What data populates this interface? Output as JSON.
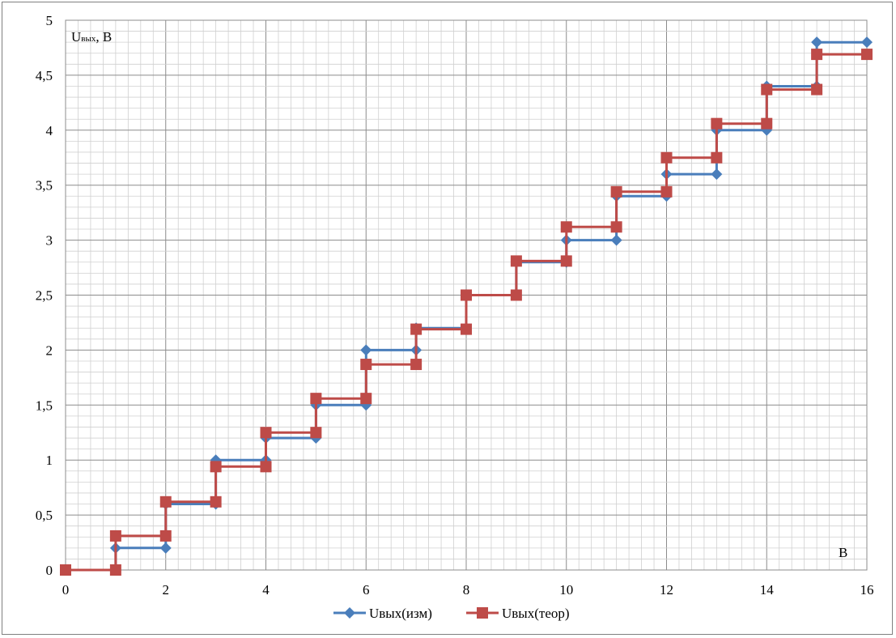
{
  "chart_data": {
    "type": "line",
    "title": "",
    "ylabel_main": "U",
    "ylabel_sub": "вых",
    "ylabel_unit": ", B",
    "xlabel": "B",
    "xlim": [
      0,
      16
    ],
    "ylim": [
      0,
      5
    ],
    "x_ticks": [
      "0",
      "2",
      "4",
      "6",
      "8",
      "10",
      "12",
      "14",
      "16"
    ],
    "y_ticks": [
      "0",
      "0,5",
      "1",
      "1,5",
      "2",
      "2,5",
      "3",
      "3,5",
      "4",
      "4,5",
      "5"
    ],
    "grid": true,
    "legend_position": "bottom",
    "series": [
      {
        "name": "Uвых(изм)",
        "color": "#4a7ebb",
        "marker": "diamond",
        "step_values": [
          0,
          0.2,
          0.6,
          1.0,
          1.2,
          1.5,
          2.0,
          2.2,
          2.5,
          2.8,
          3.0,
          3.4,
          3.6,
          4.0,
          4.4,
          4.8
        ]
      },
      {
        "name": "Uвых(теор)",
        "color": "#be4b48",
        "marker": "square",
        "step_values": [
          0,
          0.31,
          0.62,
          0.94,
          1.25,
          1.56,
          1.87,
          2.19,
          2.5,
          2.81,
          3.12,
          3.44,
          3.75,
          4.06,
          4.37,
          4.69
        ]
      }
    ]
  }
}
